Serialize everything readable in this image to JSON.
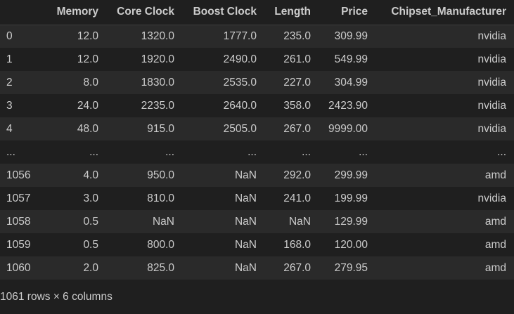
{
  "table": {
    "columns": [
      "",
      "Memory",
      "Core Clock",
      "Boost Clock",
      "Length",
      "Price",
      "Chipset_Manufacturer"
    ],
    "rows": [
      [
        "0",
        "12.0",
        "1320.0",
        "1777.0",
        "235.0",
        "309.99",
        "nvidia"
      ],
      [
        "1",
        "12.0",
        "1920.0",
        "2490.0",
        "261.0",
        "549.99",
        "nvidia"
      ],
      [
        "2",
        "8.0",
        "1830.0",
        "2535.0",
        "227.0",
        "304.99",
        "nvidia"
      ],
      [
        "3",
        "24.0",
        "2235.0",
        "2640.0",
        "358.0",
        "2423.90",
        "nvidia"
      ],
      [
        "4",
        "48.0",
        "915.0",
        "2505.0",
        "267.0",
        "9999.00",
        "nvidia"
      ],
      [
        "...",
        "...",
        "...",
        "...",
        "...",
        "...",
        "..."
      ],
      [
        "1056",
        "4.0",
        "950.0",
        "NaN",
        "292.0",
        "299.99",
        "amd"
      ],
      [
        "1057",
        "3.0",
        "810.0",
        "NaN",
        "241.0",
        "199.99",
        "nvidia"
      ],
      [
        "1058",
        "0.5",
        "NaN",
        "NaN",
        "NaN",
        "129.99",
        "amd"
      ],
      [
        "1059",
        "0.5",
        "800.0",
        "NaN",
        "168.0",
        "120.00",
        "amd"
      ],
      [
        "1060",
        "2.0",
        "825.0",
        "NaN",
        "267.0",
        "279.95",
        "amd"
      ]
    ]
  },
  "footer": {
    "shape_text": "1061 rows × 6 columns"
  },
  "colors": {
    "background": "#1f1f1f",
    "row_stripe": "#2a2a2a",
    "text": "#cccccc"
  }
}
